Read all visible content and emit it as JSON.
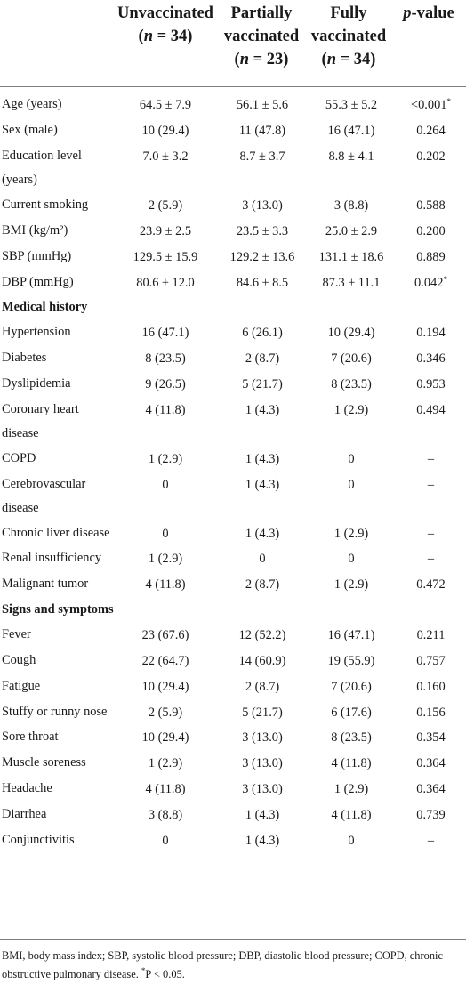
{
  "header": {
    "unvaccinated": {
      "line1": "Unvaccinated",
      "line2": "(n = 34)"
    },
    "partial": {
      "line1": "Partially",
      "line2": "vaccinated",
      "line3": "(n = 23)"
    },
    "fully": {
      "line1": "Fully",
      "line2": "vaccinated",
      "line3": "(n = 34)"
    },
    "pvalue": "p-value"
  },
  "rows": [
    {
      "label": "Age (years)",
      "u": "64.5 ± 7.9",
      "p": "56.1 ± 5.6",
      "f": "55.3 ± 5.2",
      "pv": "<0.001*"
    },
    {
      "label": "Sex (male)",
      "u": "10 (29.4)",
      "p": "11 (47.8)",
      "f": "16 (47.1)",
      "pv": "0.264"
    },
    {
      "label": "Education level (years)",
      "u": "7.0 ± 3.2",
      "p": "8.7 ± 3.7",
      "f": "8.8 ± 4.1",
      "pv": "0.202"
    },
    {
      "label": "Current smoking",
      "u": "2 (5.9)",
      "p": "3 (13.0)",
      "f": "3 (8.8)",
      "pv": "0.588"
    },
    {
      "label": "BMI (kg/m²)",
      "u": "23.9 ± 2.5",
      "p": "23.5 ± 3.3",
      "f": "25.0 ± 2.9",
      "pv": "0.200"
    },
    {
      "label": "SBP (mmHg)",
      "u": "129.5 ± 15.9",
      "p": "129.2 ± 13.6",
      "f": "131.1 ± 18.6",
      "pv": "0.889"
    },
    {
      "label": "DBP (mmHg)",
      "u": "80.6 ± 12.0",
      "p": "84.6 ± 8.5",
      "f": "87.3 ± 11.1",
      "pv": "0.042*"
    },
    {
      "section": "Medical history"
    },
    {
      "label": "Hypertension",
      "u": "16 (47.1)",
      "p": "6 (26.1)",
      "f": "10 (29.4)",
      "pv": "0.194"
    },
    {
      "label": "Diabetes",
      "u": "8 (23.5)",
      "p": "2 (8.7)",
      "f": "7 (20.6)",
      "pv": "0.346"
    },
    {
      "label": "Dyslipidemia",
      "u": "9 (26.5)",
      "p": "5 (21.7)",
      "f": "8 (23.5)",
      "pv": "0.953"
    },
    {
      "label": "Coronary heart disease",
      "u": "4 (11.8)",
      "p": "1 (4.3)",
      "f": "1 (2.9)",
      "pv": "0.494"
    },
    {
      "label": "COPD",
      "u": "1 (2.9)",
      "p": "1 (4.3)",
      "f": "0",
      "pv": "–"
    },
    {
      "label": "Cerebrovascular disease",
      "u": "0",
      "p": "1 (4.3)",
      "f": "0",
      "pv": "–"
    },
    {
      "label": "Chronic liver disease",
      "u": "0",
      "p": "1 (4.3)",
      "f": "1 (2.9)",
      "pv": "–"
    },
    {
      "label": "Renal insufficiency",
      "u": "1 (2.9)",
      "p": "0",
      "f": "0",
      "pv": "–"
    },
    {
      "label": "Malignant tumor",
      "u": "4 (11.8)",
      "p": "2 (8.7)",
      "f": "1 (2.9)",
      "pv": "0.472"
    },
    {
      "section": "Signs and symptoms"
    },
    {
      "label": "Fever",
      "u": "23 (67.6)",
      "p": "12 (52.2)",
      "f": "16 (47.1)",
      "pv": "0.211"
    },
    {
      "label": "Cough",
      "u": "22 (64.7)",
      "p": "14 (60.9)",
      "f": "19 (55.9)",
      "pv": "0.757"
    },
    {
      "label": "Fatigue",
      "u": "10 (29.4)",
      "p": "2 (8.7)",
      "f": "7 (20.6)",
      "pv": "0.160"
    },
    {
      "label": "Stuffy or runny nose",
      "u": "2 (5.9)",
      "p": "5 (21.7)",
      "f": "6 (17.6)",
      "pv": "0.156"
    },
    {
      "label": "Sore throat",
      "u": "10 (29.4)",
      "p": "3 (13.0)",
      "f": "8 (23.5)",
      "pv": "0.354"
    },
    {
      "label": "Muscle soreness",
      "u": "1 (2.9)",
      "p": "3 (13.0)",
      "f": "4 (11.8)",
      "pv": "0.364"
    },
    {
      "label": "Headache",
      "u": "4 (11.8)",
      "p": "3 (13.0)",
      "f": "1 (2.9)",
      "pv": "0.364"
    },
    {
      "label": "Diarrhea",
      "u": "3 (8.8)",
      "p": "1 (4.3)",
      "f": "4 (11.8)",
      "pv": "0.739"
    },
    {
      "label": "Conjunctivitis",
      "u": "0",
      "p": "1 (4.3)",
      "f": "0",
      "pv": "–"
    }
  ],
  "footnote": "BMI, body mass index; SBP, systolic blood pressure; DBP, diastolic blood pressure; COPD, chronic obstructive pulmonary disease. *P < 0.05."
}
